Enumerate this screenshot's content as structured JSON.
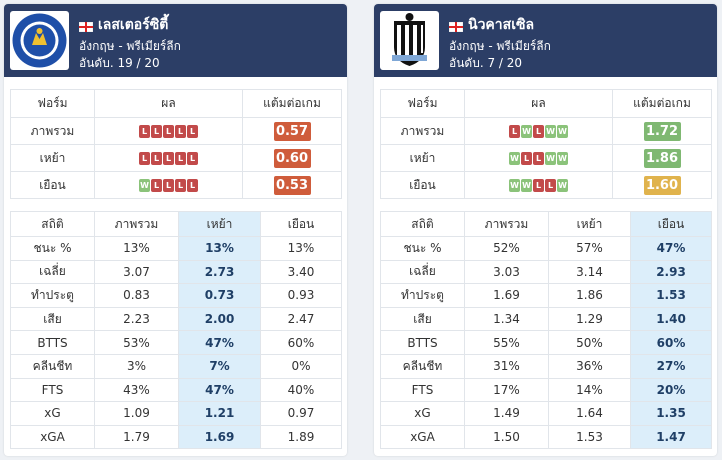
{
  "colors": {
    "header": "#2c3e66",
    "loss": "#c24a4a",
    "win": "#8bc37a",
    "ppg_bad": "#cf5c3b",
    "ppg_good": "#7fb872",
    "ppg_mid": "#e0b34d",
    "highlight": "#dceefa"
  },
  "teams": [
    {
      "name": "เลสเตอร์ซิตี้",
      "country_league": "อังกฤษ - พรีเมียร์ลีก",
      "position": "อันดับ. 19 / 20",
      "logo": "leicester-city-crest",
      "flag": "england-flag",
      "form_headers": [
        "ฟอร์ม",
        "ผล",
        "แต้มต่อเกม"
      ],
      "form_rows": [
        {
          "label": "ภาพรวม",
          "results": [
            "L",
            "L",
            "L",
            "L",
            "L"
          ],
          "ppg": "0.57",
          "ppg_color": "#cf5c3b"
        },
        {
          "label": "เหย้า",
          "results": [
            "L",
            "L",
            "L",
            "L",
            "L"
          ],
          "ppg": "0.60",
          "ppg_color": "#cf5c3b"
        },
        {
          "label": "เยือน",
          "results": [
            "W",
            "L",
            "L",
            "L",
            "L"
          ],
          "ppg": "0.53",
          "ppg_color": "#cf5c3b"
        }
      ],
      "stat_headers": [
        "สถิติ",
        "ภาพรวม",
        "เหย้า",
        "เยือน"
      ],
      "highlight_col": 2,
      "stat_rows": [
        [
          "ชนะ %",
          "13%",
          "13%",
          "13%"
        ],
        [
          "เฉลี่ย",
          "3.07",
          "2.73",
          "3.40"
        ],
        [
          "ทำประตู",
          "0.83",
          "0.73",
          "0.93"
        ],
        [
          "เสีย",
          "2.23",
          "2.00",
          "2.47"
        ],
        [
          "BTTS",
          "53%",
          "47%",
          "60%"
        ],
        [
          "คลีนชีท",
          "3%",
          "7%",
          "0%"
        ],
        [
          "FTS",
          "43%",
          "47%",
          "40%"
        ],
        [
          "xG",
          "1.09",
          "1.21",
          "0.97"
        ],
        [
          "xGA",
          "1.79",
          "1.69",
          "1.89"
        ]
      ]
    },
    {
      "name": "นิวคาสเซิล",
      "country_league": "อังกฤษ - พรีเมียร์ลีก",
      "position": "อันดับ. 7 / 20",
      "logo": "newcastle-united-crest",
      "flag": "england-flag",
      "form_headers": [
        "ฟอร์ม",
        "ผล",
        "แต้มต่อเกม"
      ],
      "form_rows": [
        {
          "label": "ภาพรวม",
          "results": [
            "L",
            "W",
            "L",
            "W",
            "W"
          ],
          "ppg": "1.72",
          "ppg_color": "#7fb872"
        },
        {
          "label": "เหย้า",
          "results": [
            "W",
            "L",
            "L",
            "W",
            "W"
          ],
          "ppg": "1.86",
          "ppg_color": "#7fb872"
        },
        {
          "label": "เยือน",
          "results": [
            "W",
            "W",
            "L",
            "L",
            "W"
          ],
          "ppg": "1.60",
          "ppg_color": "#e0b34d"
        }
      ],
      "stat_headers": [
        "สถิติ",
        "ภาพรวม",
        "เหย้า",
        "เยือน"
      ],
      "highlight_col": 3,
      "stat_rows": [
        [
          "ชนะ %",
          "52%",
          "57%",
          "47%"
        ],
        [
          "เฉลี่ย",
          "3.03",
          "3.14",
          "2.93"
        ],
        [
          "ทำประตู",
          "1.69",
          "1.86",
          "1.53"
        ],
        [
          "เสีย",
          "1.34",
          "1.29",
          "1.40"
        ],
        [
          "BTTS",
          "55%",
          "50%",
          "60%"
        ],
        [
          "คลีนชีท",
          "31%",
          "36%",
          "27%"
        ],
        [
          "FTS",
          "17%",
          "14%",
          "20%"
        ],
        [
          "xG",
          "1.49",
          "1.64",
          "1.35"
        ],
        [
          "xGA",
          "1.50",
          "1.53",
          "1.47"
        ]
      ]
    }
  ]
}
